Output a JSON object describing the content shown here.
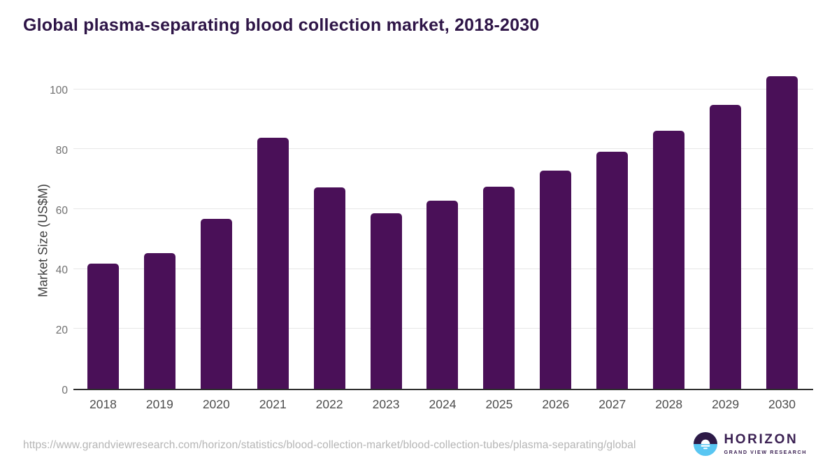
{
  "title": "Global plasma-separating blood collection market, 2018-2030",
  "source_url": "https://www.grandviewresearch.com/horizon/statistics/blood-collection-market/blood-collection-tubes/plasma-separating/global",
  "logo": {
    "name": "HORIZON",
    "subtitle": "GRAND VIEW RESEARCH",
    "icon": "horizon-sunset-icon"
  },
  "colors": {
    "bar": "#4a1058",
    "title": "#2e1547",
    "gridline": "#e7e7e7",
    "baseline": "#2e2e2e",
    "y_tick_label": "#707070",
    "x_tick_label": "#4d4d4d",
    "url_text": "#b5b5b5",
    "logo_purple": "#3b2153",
    "logo_navy": "#2e1a47",
    "logo_blue": "#59c6f2"
  },
  "chart_data": {
    "type": "bar",
    "title": "Global plasma-separating blood collection market, 2018-2030",
    "xlabel": "",
    "ylabel": "Market Size (US$M)",
    "categories": [
      "2018",
      "2019",
      "2020",
      "2021",
      "2022",
      "2023",
      "2024",
      "2025",
      "2026",
      "2027",
      "2028",
      "2029",
      "2030"
    ],
    "values": [
      41.7,
      45.2,
      56.7,
      83.9,
      67.3,
      58.6,
      62.7,
      67.4,
      72.8,
      79.1,
      86.2,
      94.7,
      104.3
    ],
    "yticks": [
      0,
      20,
      40,
      60,
      80,
      100
    ],
    "ylim": [
      0,
      107.4
    ],
    "grid": true,
    "legend": false
  }
}
